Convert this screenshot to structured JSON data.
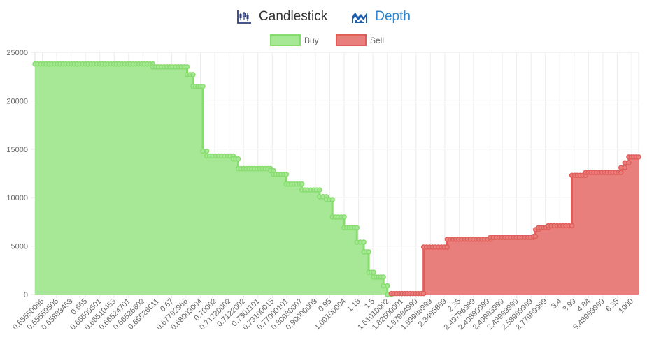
{
  "tabs": [
    {
      "label": "Candlestick",
      "icon": "candlestick-chart-icon",
      "active": false
    },
    {
      "label": "Depth",
      "icon": "depth-chart-icon",
      "active": true
    }
  ],
  "chart_data": {
    "type": "area",
    "legend": [
      {
        "name": "Buy",
        "fill": "#a6e895",
        "stroke": "#87dc6e"
      },
      {
        "name": "Sell",
        "fill": "#e87f7c",
        "stroke": "#df5e5a"
      }
    ],
    "legend_position": "top-center",
    "grid": true,
    "ylim": [
      0,
      25000
    ],
    "yticks": [
      0,
      5000,
      10000,
      15000,
      20000,
      25000
    ],
    "xtick_labels": [
      "0.65550096",
      "0.65559506",
      "0.65883453",
      "0.665",
      "0.66509501",
      "0.66510453",
      "0.66524701",
      "0.66526602",
      "0.66526611",
      "0.67",
      "0.67792966",
      "0.68003004",
      "0.70002",
      "0.71220002",
      "0.7122002",
      "0.7301101",
      "0.73100015",
      "0.77000101",
      "0.80980007",
      "0.90000003",
      "0.95",
      "1.00100004",
      "1.18",
      "1.5",
      "1.61010002",
      "1.82500001",
      "1.97984999",
      "1.99988999",
      "2.3495899",
      "2.35",
      "2.49796999",
      "2.49899999",
      "2.49983999",
      "2.49999999",
      "2.58999999",
      "2.77989999",
      "3.4",
      "3.99",
      "4.84",
      "5.48999999",
      "6.35",
      "1000"
    ],
    "series": [
      {
        "name": "Buy",
        "steps": [
          {
            "x0": 0.0,
            "x1": 12.0,
            "y": 23800
          },
          {
            "x0": 12.0,
            "x1": 15.5,
            "y": 23500
          },
          {
            "x0": 15.5,
            "x1": 16.1,
            "y": 22700
          },
          {
            "x0": 16.1,
            "x1": 17.1,
            "y": 21500
          },
          {
            "x0": 17.1,
            "x1": 17.5,
            "y": 14800
          },
          {
            "x0": 17.5,
            "x1": 20.2,
            "y": 14300
          },
          {
            "x0": 20.2,
            "x1": 20.7,
            "y": 14000
          },
          {
            "x0": 20.7,
            "x1": 24.0,
            "y": 13000
          },
          {
            "x0": 24.0,
            "x1": 24.3,
            "y": 12800
          },
          {
            "x0": 24.3,
            "x1": 25.6,
            "y": 12400
          },
          {
            "x0": 25.6,
            "x1": 27.2,
            "y": 11400
          },
          {
            "x0": 27.2,
            "x1": 29.0,
            "y": 10800
          },
          {
            "x0": 29.0,
            "x1": 29.7,
            "y": 10100
          },
          {
            "x0": 29.7,
            "x1": 30.3,
            "y": 9800
          },
          {
            "x0": 30.3,
            "x1": 31.5,
            "y": 8000
          },
          {
            "x0": 31.5,
            "x1": 32.8,
            "y": 6900
          },
          {
            "x0": 32.8,
            "x1": 33.5,
            "y": 5400
          },
          {
            "x0": 33.5,
            "x1": 34.0,
            "y": 4400
          },
          {
            "x0": 34.0,
            "x1": 34.5,
            "y": 2300
          },
          {
            "x0": 34.5,
            "x1": 35.5,
            "y": 1800
          },
          {
            "x0": 35.5,
            "x1": 35.9,
            "y": 900
          },
          {
            "x0": 35.9,
            "x1": 36.3,
            "y": 0
          }
        ]
      },
      {
        "name": "Sell",
        "steps": [
          {
            "x0": 36.3,
            "x1": 39.6,
            "y": 100
          },
          {
            "x0": 39.6,
            "x1": 42.0,
            "y": 4900
          },
          {
            "x0": 42.0,
            "x1": 46.4,
            "y": 5700
          },
          {
            "x0": 46.4,
            "x1": 50.8,
            "y": 5900
          },
          {
            "x0": 50.8,
            "x1": 51.0,
            "y": 6000
          },
          {
            "x0": 51.0,
            "x1": 51.3,
            "y": 6700
          },
          {
            "x0": 51.3,
            "x1": 52.3,
            "y": 6900
          },
          {
            "x0": 52.3,
            "x1": 54.7,
            "y": 7100
          },
          {
            "x0": 54.7,
            "x1": 56.1,
            "y": 12300
          },
          {
            "x0": 56.1,
            "x1": 59.7,
            "y": 12600
          },
          {
            "x0": 59.7,
            "x1": 60.1,
            "y": 13100
          },
          {
            "x0": 60.1,
            "x1": 60.5,
            "y": 13600
          },
          {
            "x0": 60.5,
            "x1": 61.5,
            "y": 14200
          }
        ]
      }
    ],
    "x_index_max": 61.5
  }
}
